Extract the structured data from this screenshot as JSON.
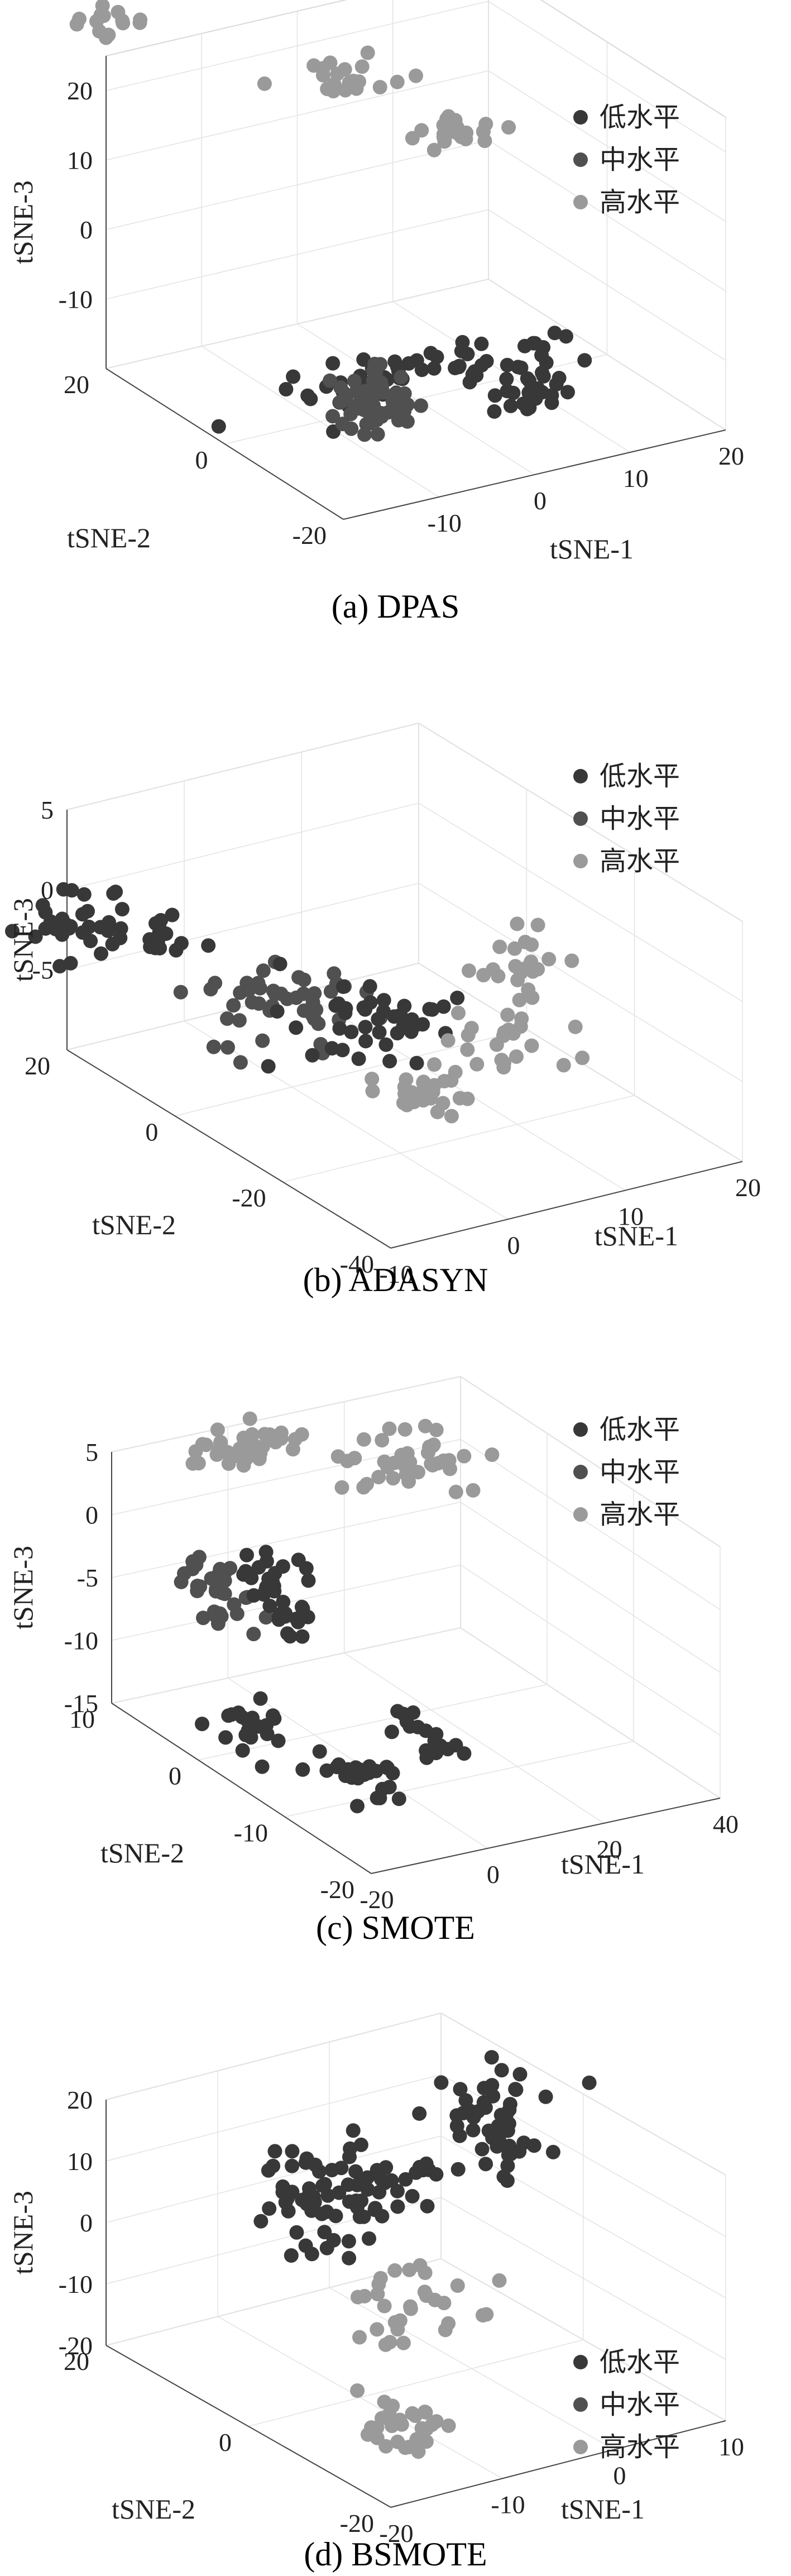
{
  "series_colors": {
    "low": "#383838",
    "mid": "#505050",
    "high": "#9a9a9a"
  },
  "chart_data": [
    {
      "type": "scatter",
      "caption": "(a) DPAS",
      "series": [
        {
          "name": "低水平"
        },
        {
          "name": "中水平"
        },
        {
          "name": "高水平"
        }
      ],
      "xlabel": "tSNE-1",
      "ylabel": "tSNE-2",
      "zlabel": "tSNE-3",
      "xticks": [
        "-10",
        "0",
        "10",
        "20"
      ],
      "yticks": [
        "20",
        "0",
        "-20"
      ],
      "zticks": [
        "20",
        "10",
        "0",
        "-10"
      ],
      "xlim": [
        -20,
        20
      ],
      "ylim": [
        -20,
        20
      ],
      "zlim": [
        -20,
        25
      ],
      "grid": true,
      "legend": "top-right",
      "clusters": [
        {
          "s": 2,
          "x": -19,
          "y": 20,
          "z": 30,
          "sx": 2,
          "sy": 1,
          "sz": 1,
          "n": 14
        },
        {
          "s": 2,
          "x": 0,
          "y": 12,
          "z": 20,
          "sx": 3,
          "sy": 2,
          "sz": 1,
          "n": 22
        },
        {
          "s": 2,
          "x": 10,
          "y": 10,
          "z": 10,
          "sx": 2,
          "sy": 1,
          "sz": 1,
          "n": 24
        },
        {
          "s": 0,
          "x": -4,
          "y": -4,
          "z": -13,
          "sx": 8,
          "sy": 2,
          "sz": 1.5,
          "n": 55
        },
        {
          "s": 1,
          "x": -12,
          "y": -12,
          "z": -10,
          "sx": 2,
          "sy": 2,
          "sz": 2,
          "n": 60
        },
        {
          "s": 0,
          "x": 4,
          "y": -14,
          "z": -12,
          "sx": 2,
          "sy": 1,
          "sz": 1.5,
          "n": 28
        }
      ]
    },
    {
      "type": "scatter",
      "caption": "(b) ADASYN",
      "series": [
        {
          "name": "低水平"
        },
        {
          "name": "中水平"
        },
        {
          "name": "高水平"
        }
      ],
      "xlabel": "tSNE-1",
      "ylabel": "tSNE-2",
      "zlabel": "tSNE-3",
      "xticks": [
        "-10",
        "0",
        "10",
        "20"
      ],
      "yticks": [
        "20",
        "0",
        "-20",
        "-40"
      ],
      "zticks": [
        "5",
        "0",
        "-5"
      ],
      "xlim": [
        -10,
        20
      ],
      "ylim": [
        -40,
        20
      ],
      "zlim": [
        -10,
        5
      ],
      "grid": true,
      "legend": "top-right",
      "clusters": [
        {
          "s": 0,
          "x": -14,
          "y": 10,
          "z": 1,
          "sx": 2,
          "sy": 3,
          "sz": 0.8,
          "n": 30
        },
        {
          "s": 0,
          "x": -9,
          "y": 4,
          "z": 0.2,
          "sx": 1.5,
          "sy": 2,
          "sz": 0.6,
          "n": 16
        },
        {
          "s": 1,
          "x": -4,
          "y": -6,
          "z": -2.8,
          "sx": 3,
          "sy": 4,
          "sz": 0.9,
          "n": 45
        },
        {
          "s": 0,
          "x": 2,
          "y": -12,
          "z": -3.5,
          "sx": 3,
          "sy": 4,
          "sz": 0.8,
          "n": 45
        },
        {
          "s": 2,
          "x": 3,
          "y": -18,
          "z": -7.5,
          "sx": 2,
          "sy": 3,
          "sz": 0.7,
          "n": 25
        },
        {
          "s": 2,
          "x": 10,
          "y": -18,
          "z": -5.5,
          "sx": 3,
          "sy": 3,
          "sz": 0.7,
          "n": 25
        },
        {
          "s": 2,
          "x": 16,
          "y": -10,
          "z": -3.2,
          "sx": 2,
          "sy": 3,
          "sz": 0.6,
          "n": 20
        }
      ]
    },
    {
      "type": "scatter",
      "caption": "(c) SMOTE",
      "series": [
        {
          "name": "低水平"
        },
        {
          "name": "中水平"
        },
        {
          "name": "高水平"
        }
      ],
      "xlabel": "tSNE-1",
      "ylabel": "tSNE-2",
      "zlabel": "tSNE-3",
      "xticks": [
        "-20",
        "0",
        "20",
        "40"
      ],
      "yticks": [
        "10",
        "0",
        "-10",
        "-20"
      ],
      "zticks": [
        "5",
        "0",
        "-5",
        "-10",
        "-15"
      ],
      "xlim": [
        -20,
        40
      ],
      "ylim": [
        -20,
        10
      ],
      "zlim": [
        -15,
        5
      ],
      "grid": true,
      "legend": "top-right",
      "clusters": [
        {
          "s": 2,
          "x": 0,
          "y": 8,
          "z": 4.5,
          "sx": 4,
          "sy": 1,
          "sz": 0.6,
          "n": 45
        },
        {
          "s": 2,
          "x": 25,
          "y": 6,
          "z": 1.5,
          "sx": 6,
          "sy": 2,
          "sz": 0.5,
          "n": 40
        },
        {
          "s": 1,
          "x": -14,
          "y": 2,
          "z": -3,
          "sx": 3,
          "sy": 2,
          "sz": 1.2,
          "n": 35
        },
        {
          "s": 0,
          "x": -6,
          "y": 0,
          "z": -3,
          "sx": 2,
          "sy": 2,
          "sz": 1.5,
          "n": 35
        },
        {
          "s": 0,
          "x": -17,
          "y": -5,
          "z": -11,
          "sx": 2,
          "sy": 2,
          "sz": 1,
          "n": 22
        },
        {
          "s": 0,
          "x": -6,
          "y": -10,
          "z": -13,
          "sx": 2,
          "sy": 2,
          "sz": 0.8,
          "n": 28
        },
        {
          "s": 0,
          "x": 4,
          "y": -10,
          "z": -11,
          "sx": 2,
          "sy": 2,
          "sz": 0.8,
          "n": 18
        }
      ]
    },
    {
      "type": "scatter",
      "caption": "(d) BSMOTE",
      "series": [
        {
          "name": "低水平"
        },
        {
          "name": "中水平"
        },
        {
          "name": "高水平"
        }
      ],
      "xlabel": "tSNE-1",
      "ylabel": "tSNE-2",
      "zlabel": "tSNE-3",
      "xticks": [
        "-20",
        "-10",
        "0",
        "10"
      ],
      "yticks": [
        "20",
        "0",
        "-20"
      ],
      "zticks": [
        "20",
        "10",
        "0",
        "-10",
        "-20"
      ],
      "xlim": [
        -20,
        10
      ],
      "ylim": [
        -20,
        20
      ],
      "zlim": [
        -20,
        20
      ],
      "grid": true,
      "legend": "top-right",
      "clusters": [
        {
          "s": 0,
          "x": -8,
          "y": 6,
          "z": 8,
          "sx": 3,
          "sy": 3,
          "sz": 4,
          "n": 70
        },
        {
          "s": 0,
          "x": -2,
          "y": 5,
          "z": 9,
          "sx": 2,
          "sy": 1,
          "sz": 0.5,
          "n": 10
        },
        {
          "s": 0,
          "x": 6,
          "y": 6,
          "z": 15,
          "sx": 2,
          "sy": 3,
          "sz": 4,
          "n": 50
        },
        {
          "s": 2,
          "x": -6,
          "y": -2,
          "z": -5,
          "sx": 3,
          "sy": 3,
          "sz": 3,
          "n": 30
        },
        {
          "s": 2,
          "x": -14,
          "y": -12,
          "z": -15,
          "sx": 2,
          "sy": 2,
          "sz": 2,
          "n": 30
        }
      ]
    }
  ]
}
